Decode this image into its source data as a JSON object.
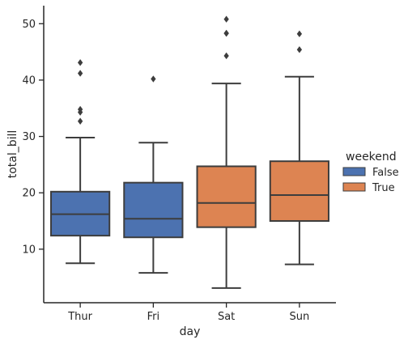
{
  "chart_data": {
    "type": "box",
    "xlabel": "day",
    "ylabel": "total_bill",
    "ylim": [
      0.5,
      53.2
    ],
    "yticks": [
      10,
      20,
      30,
      40,
      50
    ],
    "categories": [
      "Thur",
      "Fri",
      "Sat",
      "Sun"
    ],
    "grid": false,
    "legend": {
      "title": "weekend",
      "placement": "right",
      "entries": [
        {
          "name": "False",
          "color": "#4c72b0"
        },
        {
          "name": "True",
          "color": "#dd8452"
        }
      ]
    },
    "boxes": [
      {
        "category": "Thur",
        "series": "False",
        "whisker_low": 7.5,
        "q1": 12.4,
        "median": 16.2,
        "q3": 20.2,
        "whisker_high": 29.8,
        "outliers": [
          32.7,
          34.3,
          34.8,
          41.2,
          43.1
        ]
      },
      {
        "category": "Fri",
        "series": "False",
        "whisker_low": 5.8,
        "q1": 12.1,
        "median": 15.4,
        "q3": 21.8,
        "whisker_high": 28.9,
        "outliers": [
          40.2
        ]
      },
      {
        "category": "Sat",
        "series": "True",
        "whisker_low": 3.1,
        "q1": 13.9,
        "median": 18.2,
        "q3": 24.7,
        "whisker_high": 39.4,
        "outliers": [
          44.3,
          48.3,
          48.3,
          50.8
        ]
      },
      {
        "category": "Sun",
        "series": "True",
        "whisker_low": 7.3,
        "q1": 15.0,
        "median": 19.6,
        "q3": 25.6,
        "whisker_high": 40.6,
        "outliers": [
          45.4,
          48.2
        ]
      }
    ]
  }
}
